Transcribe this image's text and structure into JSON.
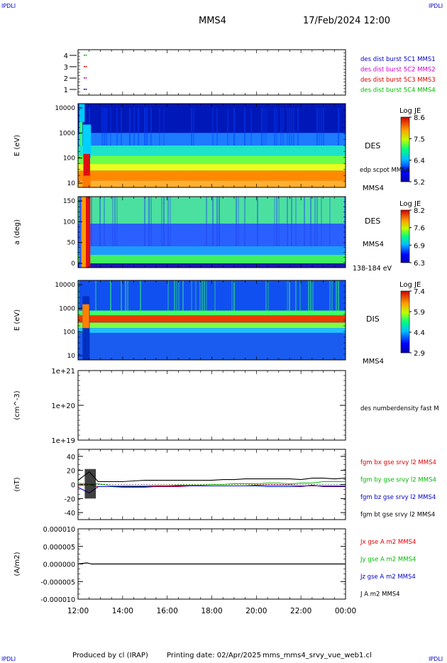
{
  "corner_marks": {
    "top_left": "IPDLI",
    "top_right": "IPDLI",
    "bottom_left": "IPDLI",
    "bottom_right": "IPDLI"
  },
  "header": {
    "spacecraft": "MMS4",
    "date": "17/Feb/2024 12:00"
  },
  "footer": {
    "producer": "Produced by cl (IRAP)",
    "printing": "Printing date: 02/Apr/2025",
    "filename": "mms_mms4_srvy_vue_web1.cl"
  },
  "x_axis": {
    "ticks": [
      "12:00",
      "14:00",
      "16:00",
      "18:00",
      "20:00",
      "22:00",
      "00:00"
    ]
  },
  "colors": {
    "MMS1": "#0000cc",
    "MMS2": "#cc00cc",
    "MMS3": "#dd0000",
    "MMS4": "#00bb00",
    "black": "#000000"
  },
  "chart_data": [
    {
      "type": "scatter",
      "panel": "burst-availability",
      "y_ticks": [
        "4",
        "3",
        "2",
        "1"
      ],
      "ylim": [
        0.5,
        4.5
      ],
      "legend": [
        {
          "name": "des dist burst 5C1 MMS1",
          "color": "#0000cc"
        },
        {
          "name": "des dist burst 5C2 MMS2",
          "color": "#cc00cc"
        },
        {
          "name": "des dist burst 5C3 MMS3",
          "color": "#dd0000"
        },
        {
          "name": "des dist burst 5C4 MMS4",
          "color": "#00bb00"
        }
      ],
      "series": [
        {
          "spacecraft": "MMS4",
          "y": 4,
          "x": [
            "12:15",
            "12:20"
          ]
        },
        {
          "spacecraft": "MMS3",
          "y": 3,
          "x": [
            "12:15",
            "12:20"
          ]
        },
        {
          "spacecraft": "MMS2",
          "y": 2,
          "x": [
            "12:15",
            "12:20"
          ]
        },
        {
          "spacecraft": "MMS1",
          "y": 1,
          "x": [
            "12:15",
            "12:20"
          ]
        }
      ]
    },
    {
      "type": "heatmap",
      "panel": "des-energy",
      "ylabel": "E (eV)",
      "scale": "log",
      "ylim": [
        10,
        30000
      ],
      "y_ticks": [
        "10000",
        "1000",
        "100",
        "10"
      ],
      "label": "DES",
      "extra_labels": [
        "edp scpot MMS4",
        "MMS4"
      ],
      "colorbar": {
        "title": "Log JE",
        "ticks": [
          "8.6",
          "7.5",
          "6.4",
          "5.2"
        ]
      }
    },
    {
      "type": "heatmap",
      "panel": "des-pitch-angle",
      "ylabel": "a (deg)",
      "ylim": [
        0,
        180
      ],
      "y_ticks": [
        "150",
        "100",
        "50",
        "0"
      ],
      "label": "DES",
      "extra_labels": [
        "MMS4",
        "138-184 eV"
      ],
      "colorbar": {
        "title": "Log JE",
        "ticks": [
          "8.2",
          "7.6",
          "6.9",
          "6.3"
        ]
      }
    },
    {
      "type": "heatmap",
      "panel": "dis-energy",
      "ylabel": "E (eV)",
      "scale": "log",
      "ylim": [
        10,
        20000
      ],
      "y_ticks": [
        "10000",
        "1000",
        "100",
        "10"
      ],
      "label": "DIS",
      "extra_labels": [
        "MMS4"
      ],
      "colorbar": {
        "title": "Log JE",
        "ticks": [
          "7.4",
          "5.9",
          "4.4",
          "2.9"
        ]
      }
    },
    {
      "type": "line",
      "panel": "density",
      "ylabel": "(cm^-3)",
      "scale": "log",
      "y_ticks": [
        "1e+21",
        "1e+20",
        "1e+19"
      ],
      "legend": [
        {
          "name": "des numberdensity fast M",
          "color": "#000000"
        }
      ],
      "series": []
    },
    {
      "type": "line",
      "panel": "magnetic-field",
      "ylabel": "(nT)",
      "ylim": [
        -50,
        50
      ],
      "y_ticks": [
        "40",
        "20",
        "0",
        "-20",
        "-40"
      ],
      "legend": [
        {
          "name": "fgm bx gse srvy l2 MMS4",
          "color": "#dd0000"
        },
        {
          "name": "fgm by gse srvy l2 MMS4",
          "color": "#00bb00"
        },
        {
          "name": "fgm bz gse srvy l2 MMS4",
          "color": "#0000cc"
        },
        {
          "name": "fgm bt gse srvy l2 MMS4",
          "color": "#000000"
        }
      ],
      "x_hours": [
        0,
        0.5,
        0.9,
        1.5,
        2,
        2.5,
        3,
        3.5,
        4,
        4.5,
        5,
        5.5,
        6,
        6.5,
        7,
        7.5,
        8,
        8.5,
        9,
        9.5,
        10,
        10.5,
        11,
        11.5,
        12
      ],
      "series": [
        {
          "name": "bx",
          "values": [
            -2,
            0,
            -3,
            -3,
            -4,
            -4,
            -4,
            -3,
            -3,
            -3,
            -2,
            -2,
            -2,
            -2,
            -2,
            -2,
            -1,
            -1,
            -1,
            -1,
            -2,
            -2,
            -2,
            -2,
            -2
          ]
        },
        {
          "name": "by",
          "values": [
            2,
            0,
            1,
            -2,
            -2,
            -2,
            -2,
            -2,
            -2,
            -1,
            -1,
            -1,
            0,
            0,
            1,
            1,
            1,
            2,
            2,
            1,
            2,
            2,
            4,
            4,
            4
          ]
        },
        {
          "name": "bz",
          "values": [
            -4,
            -12,
            -3,
            -3,
            -3,
            -3,
            -3,
            -2,
            -2,
            -2,
            -2,
            -2,
            -2,
            -2,
            -2,
            -2,
            -2,
            -3,
            -3,
            -3,
            -3,
            -1,
            -3,
            -3,
            -3
          ]
        },
        {
          "name": "bt",
          "values": [
            6,
            18,
            4,
            4,
            4,
            5,
            6,
            6,
            6,
            6,
            6,
            6,
            6,
            7,
            7,
            8,
            8,
            8,
            8,
            8,
            7,
            9,
            9,
            8,
            9
          ]
        }
      ]
    },
    {
      "type": "line",
      "panel": "current-density",
      "ylabel": "(A/m2)",
      "ylim": [
        -1e-05,
        1e-05
      ],
      "y_ticks": [
        "0.000010",
        "0.000005",
        "0.000000",
        "-0.000005",
        "-0.000010"
      ],
      "legend": [
        {
          "name": "Jx gse A m2 MMS4",
          "color": "#dd0000"
        },
        {
          "name": "Jy gse A m2 MMS4",
          "color": "#00bb00"
        },
        {
          "name": "Jz gse A m2 MMS4",
          "color": "#0000cc"
        },
        {
          "name": "J A m2 MMS4",
          "color": "#000000"
        }
      ],
      "x_hours": [
        0,
        0.4,
        0.6,
        12
      ],
      "series": [
        {
          "name": "J",
          "values": [
            0,
            3e-07,
            0,
            0
          ]
        }
      ]
    }
  ]
}
